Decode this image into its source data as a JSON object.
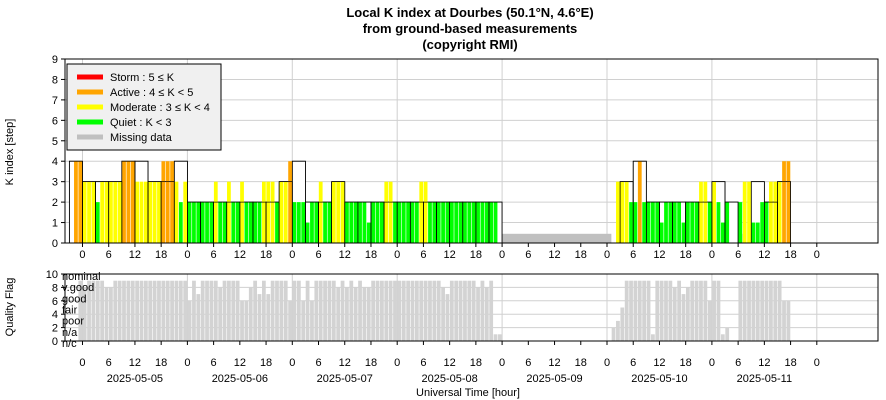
{
  "chart_data": [
    {
      "type": "bar",
      "title": [
        "Local K index at Dourbes (50.1°N, 4.6°E)",
        "from ground-based measurements",
        "(copyright RMI)"
      ],
      "ylabel": "K index [step]",
      "ylim": [
        0,
        9
      ],
      "yticks": [
        "0",
        "1",
        "2",
        "3",
        "4",
        "5",
        "6",
        "7",
        "8",
        "9"
      ],
      "x_unit": "hours since 2025-05-05 00 UT",
      "xlim": [
        -4,
        182
      ],
      "grid": true,
      "legend_position": "top-left",
      "legend": [
        {
          "label": "Storm : 5 ≤ K",
          "color": "#ff0000"
        },
        {
          "label": "Active : 4 ≤ K < 5",
          "color": "#ffa500"
        },
        {
          "label": "Moderate : 3 ≤ K < 4",
          "color": "#ffff00"
        },
        {
          "label": "Quiet : K < 3",
          "color": "#00ff00"
        },
        {
          "label": "Missing data",
          "color": "#c0c0c0"
        }
      ],
      "colors": {
        "storm": "#ff0000",
        "active": "#ffa500",
        "moderate": "#ffff00",
        "quiet": "#00ff00",
        "missing": "#c0c0c0",
        "outline": "#000000"
      },
      "k3h": [
        [
          -3,
          4
        ],
        [
          0,
          3
        ],
        [
          3,
          3
        ],
        [
          6,
          3
        ],
        [
          9,
          4
        ],
        [
          12,
          4
        ],
        [
          15,
          3
        ],
        [
          18,
          3
        ],
        [
          21,
          4
        ],
        [
          24,
          2
        ],
        [
          27,
          2
        ],
        [
          30,
          2
        ],
        [
          33,
          2
        ],
        [
          36,
          2
        ],
        [
          39,
          2
        ],
        [
          42,
          2
        ],
        [
          45,
          3
        ],
        [
          48,
          4
        ],
        [
          51,
          2
        ],
        [
          54,
          2
        ],
        [
          57,
          3
        ],
        [
          60,
          2
        ],
        [
          63,
          2
        ],
        [
          66,
          2
        ],
        [
          69,
          2
        ],
        [
          72,
          2
        ],
        [
          75,
          2
        ],
        [
          78,
          2
        ],
        [
          81,
          2
        ],
        [
          84,
          2
        ],
        [
          87,
          2
        ],
        [
          90,
          2
        ],
        [
          93,
          2
        ],
        [
          123,
          3
        ],
        [
          126,
          4
        ],
        [
          129,
          2
        ],
        [
          132,
          2
        ],
        [
          135,
          2
        ],
        [
          138,
          2
        ],
        [
          141,
          2
        ],
        [
          144,
          3
        ],
        [
          147,
          2
        ],
        [
          150,
          0
        ],
        [
          153,
          3
        ],
        [
          156,
          2
        ],
        [
          159,
          3
        ],
        [
          162,
          0
        ]
      ],
      "k1h": [
        [
          -2,
          4
        ],
        [
          -1,
          4
        ],
        [
          0,
          3
        ],
        [
          1,
          3
        ],
        [
          2,
          3
        ],
        [
          3,
          2
        ],
        [
          4,
          3
        ],
        [
          5,
          3
        ],
        [
          6,
          3
        ],
        [
          7,
          3
        ],
        [
          8,
          3
        ],
        [
          9,
          4
        ],
        [
          10,
          4
        ],
        [
          11,
          4
        ],
        [
          12,
          3
        ],
        [
          13,
          3
        ],
        [
          14,
          3
        ],
        [
          15,
          3
        ],
        [
          16,
          3
        ],
        [
          17,
          3
        ],
        [
          18,
          4
        ],
        [
          19,
          4
        ],
        [
          20,
          4
        ],
        [
          21,
          3
        ],
        [
          22,
          2
        ],
        [
          23,
          3
        ],
        [
          24,
          2
        ],
        [
          25,
          2
        ],
        [
          26,
          2
        ],
        [
          27,
          2
        ],
        [
          28,
          2
        ],
        [
          29,
          2
        ],
        [
          30,
          3
        ],
        [
          31,
          2
        ],
        [
          32,
          2
        ],
        [
          33,
          3
        ],
        [
          34,
          2
        ],
        [
          35,
          2
        ],
        [
          36,
          3
        ],
        [
          37,
          2
        ],
        [
          38,
          2
        ],
        [
          39,
          2
        ],
        [
          40,
          2
        ],
        [
          41,
          3
        ],
        [
          42,
          3
        ],
        [
          43,
          3
        ],
        [
          44,
          2
        ],
        [
          45,
          3
        ],
        [
          46,
          3
        ],
        [
          47,
          4
        ],
        [
          48,
          2
        ],
        [
          49,
          2
        ],
        [
          50,
          2
        ],
        [
          51,
          1
        ],
        [
          52,
          2
        ],
        [
          53,
          2
        ],
        [
          54,
          3
        ],
        [
          55,
          2
        ],
        [
          56,
          2
        ],
        [
          57,
          3
        ],
        [
          58,
          3
        ],
        [
          59,
          3
        ],
        [
          60,
          2
        ],
        [
          61,
          2
        ],
        [
          62,
          2
        ],
        [
          63,
          2
        ],
        [
          64,
          2
        ],
        [
          65,
          1
        ],
        [
          66,
          2
        ],
        [
          67,
          2
        ],
        [
          68,
          2
        ],
        [
          69,
          3
        ],
        [
          70,
          3
        ],
        [
          71,
          2
        ],
        [
          72,
          2
        ],
        [
          73,
          2
        ],
        [
          74,
          2
        ],
        [
          75,
          2
        ],
        [
          76,
          2
        ],
        [
          77,
          3
        ],
        [
          78,
          3
        ],
        [
          79,
          2
        ],
        [
          80,
          2
        ],
        [
          81,
          2
        ],
        [
          82,
          2
        ],
        [
          83,
          2
        ],
        [
          84,
          2
        ],
        [
          85,
          2
        ],
        [
          86,
          2
        ],
        [
          87,
          2
        ],
        [
          88,
          2
        ],
        [
          89,
          2
        ],
        [
          90,
          2
        ],
        [
          91,
          2
        ],
        [
          92,
          2
        ],
        [
          93,
          2
        ],
        [
          94,
          2
        ],
        [
          122,
          3
        ],
        [
          123,
          3
        ],
        [
          124,
          3
        ],
        [
          125,
          2
        ],
        [
          126,
          2
        ],
        [
          127,
          4
        ],
        [
          128,
          2
        ],
        [
          129,
          2
        ],
        [
          130,
          2
        ],
        [
          131,
          2
        ],
        [
          132,
          1
        ],
        [
          133,
          2
        ],
        [
          134,
          2
        ],
        [
          135,
          2
        ],
        [
          136,
          2
        ],
        [
          137,
          1
        ],
        [
          138,
          2
        ],
        [
          139,
          2
        ],
        [
          140,
          2
        ],
        [
          141,
          3
        ],
        [
          142,
          3
        ],
        [
          143,
          2
        ],
        [
          144,
          3
        ],
        [
          145,
          2
        ],
        [
          146,
          1
        ],
        [
          147,
          2
        ],
        [
          148,
          0
        ],
        [
          149,
          0
        ],
        [
          150,
          2
        ],
        [
          151,
          3
        ],
        [
          152,
          3
        ],
        [
          153,
          1
        ],
        [
          154,
          1
        ],
        [
          155,
          2
        ],
        [
          156,
          2
        ],
        [
          157,
          3
        ],
        [
          158,
          3
        ],
        [
          159,
          3
        ],
        [
          160,
          4
        ],
        [
          161,
          4
        ]
      ],
      "missing": [
        [
          95,
          121
        ],
        [
          149,
          151
        ]
      ],
      "x_tick_labels": [
        "0",
        "6",
        "12",
        "18",
        "0",
        "6",
        "12",
        "18",
        "0",
        "6",
        "12",
        "18",
        "0",
        "6",
        "12",
        "18",
        "0",
        "6",
        "12",
        "18",
        "0",
        "6",
        "12",
        "18",
        "0",
        "6",
        "12",
        "18",
        "0"
      ]
    },
    {
      "type": "bar",
      "ylabel": "Quality Flag",
      "xlabel": "Universal Time [hour]",
      "ylim": [
        0,
        10
      ],
      "yticks": [
        "0",
        "2",
        "4",
        "6",
        "8",
        "10"
      ],
      "levels": [
        "nominal",
        "v.good",
        "good",
        "fair",
        "poor",
        "n/a",
        "n/c"
      ],
      "dates": [
        "2025-05-05",
        "2025-05-06",
        "2025-05-07",
        "2025-05-08",
        "2025-05-09",
        "2025-05-10",
        "2025-05-11"
      ],
      "bar_color": "#d3d3d3",
      "quality": [
        [
          -1,
          9
        ],
        [
          0,
          8
        ],
        [
          1,
          9
        ],
        [
          2,
          9
        ],
        [
          3,
          9
        ],
        [
          4,
          9
        ],
        [
          5,
          8
        ],
        [
          6,
          8
        ],
        [
          7,
          9
        ],
        [
          8,
          9
        ],
        [
          9,
          9
        ],
        [
          10,
          9
        ],
        [
          11,
          9
        ],
        [
          12,
          9
        ],
        [
          13,
          9
        ],
        [
          14,
          9
        ],
        [
          15,
          9
        ],
        [
          16,
          9
        ],
        [
          17,
          9
        ],
        [
          18,
          9
        ],
        [
          19,
          9
        ],
        [
          20,
          9
        ],
        [
          21,
          9
        ],
        [
          22,
          9
        ],
        [
          23,
          9
        ],
        [
          24,
          6
        ],
        [
          25,
          9
        ],
        [
          26,
          7
        ],
        [
          27,
          9
        ],
        [
          28,
          9
        ],
        [
          29,
          9
        ],
        [
          30,
          9
        ],
        [
          31,
          8
        ],
        [
          32,
          9
        ],
        [
          33,
          9
        ],
        [
          34,
          9
        ],
        [
          35,
          9
        ],
        [
          36,
          6
        ],
        [
          37,
          6
        ],
        [
          38,
          8
        ],
        [
          39,
          9
        ],
        [
          40,
          7
        ],
        [
          41,
          9
        ],
        [
          42,
          7
        ],
        [
          43,
          9
        ],
        [
          44,
          9
        ],
        [
          45,
          9
        ],
        [
          46,
          9
        ],
        [
          47,
          6
        ],
        [
          48,
          9
        ],
        [
          49,
          9
        ],
        [
          50,
          6
        ],
        [
          51,
          9
        ],
        [
          52,
          6
        ],
        [
          53,
          9
        ],
        [
          54,
          9
        ],
        [
          55,
          9
        ],
        [
          56,
          9
        ],
        [
          57,
          9
        ],
        [
          58,
          8
        ],
        [
          59,
          9
        ],
        [
          60,
          8
        ],
        [
          61,
          9
        ],
        [
          62,
          8
        ],
        [
          63,
          9
        ],
        [
          64,
          8
        ],
        [
          65,
          8
        ],
        [
          66,
          9
        ],
        [
          67,
          9
        ],
        [
          68,
          9
        ],
        [
          69,
          9
        ],
        [
          70,
          9
        ],
        [
          71,
          9
        ],
        [
          72,
          9
        ],
        [
          73,
          9
        ],
        [
          74,
          9
        ],
        [
          75,
          9
        ],
        [
          76,
          9
        ],
        [
          77,
          9
        ],
        [
          78,
          9
        ],
        [
          79,
          9
        ],
        [
          80,
          9
        ],
        [
          81,
          9
        ],
        [
          82,
          8
        ],
        [
          83,
          7
        ],
        [
          84,
          9
        ],
        [
          85,
          9
        ],
        [
          86,
          9
        ],
        [
          87,
          9
        ],
        [
          88,
          9
        ],
        [
          89,
          9
        ],
        [
          90,
          8
        ],
        [
          91,
          9
        ],
        [
          92,
          8
        ],
        [
          93,
          9
        ],
        [
          94,
          1
        ],
        [
          95,
          1
        ],
        [
          121,
          2
        ],
        [
          122,
          3
        ],
        [
          123,
          5
        ],
        [
          124,
          9
        ],
        [
          125,
          9
        ],
        [
          126,
          9
        ],
        [
          127,
          9
        ],
        [
          128,
          9
        ],
        [
          129,
          9
        ],
        [
          130,
          1
        ],
        [
          131,
          9
        ],
        [
          132,
          9
        ],
        [
          133,
          9
        ],
        [
          134,
          9
        ],
        [
          135,
          8
        ],
        [
          136,
          9
        ],
        [
          137,
          7
        ],
        [
          138,
          8
        ],
        [
          139,
          9
        ],
        [
          140,
          9
        ],
        [
          141,
          9
        ],
        [
          142,
          9
        ],
        [
          143,
          6
        ],
        [
          144,
          9
        ],
        [
          145,
          9
        ],
        [
          146,
          1
        ],
        [
          147,
          2
        ],
        [
          148,
          0
        ],
        [
          149,
          0
        ],
        [
          150,
          9
        ],
        [
          151,
          9
        ],
        [
          152,
          9
        ],
        [
          153,
          9
        ],
        [
          154,
          9
        ],
        [
          155,
          9
        ],
        [
          156,
          9
        ],
        [
          157,
          9
        ],
        [
          158,
          9
        ],
        [
          159,
          9
        ],
        [
          160,
          6
        ],
        [
          161,
          6
        ]
      ]
    }
  ]
}
